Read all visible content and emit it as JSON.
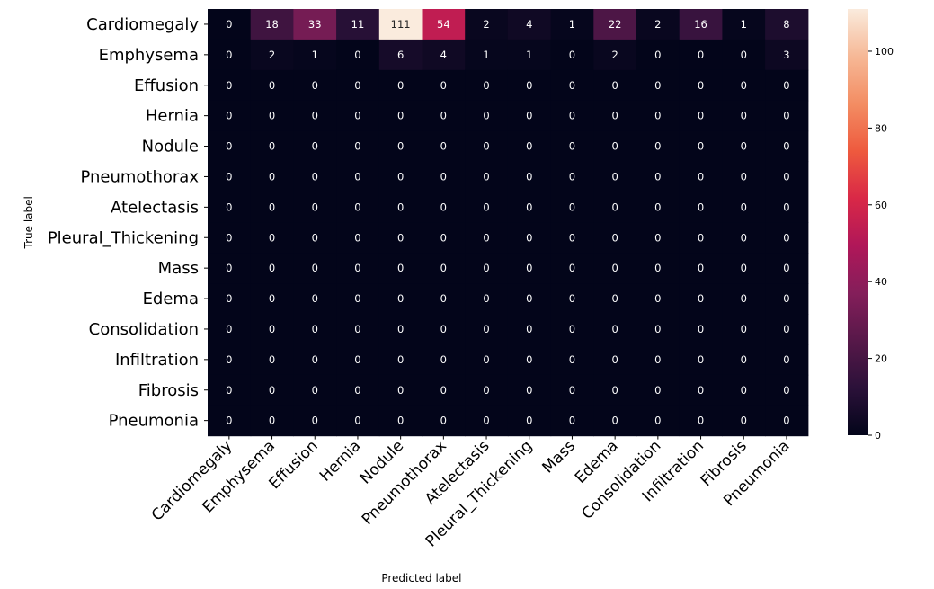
{
  "chart_data": {
    "type": "heatmap",
    "title": "",
    "xlabel": "Predicted label",
    "ylabel": "True label",
    "row_labels": [
      "Cardiomegaly",
      "Emphysema",
      "Effusion",
      "Hernia",
      "Nodule",
      "Pneumothorax",
      "Atelectasis",
      "Pleural_Thickening",
      "Mass",
      "Edema",
      "Consolidation",
      "Infiltration",
      "Fibrosis",
      "Pneumonia"
    ],
    "col_labels": [
      "Cardiomegaly",
      "Emphysema",
      "Effusion",
      "Hernia",
      "Nodule",
      "Pneumothorax",
      "Atelectasis",
      "Pleural_Thickening",
      "Mass",
      "Edema",
      "Consolidation",
      "Infiltration",
      "Fibrosis",
      "Pneumonia"
    ],
    "values": [
      [
        0,
        18,
        33,
        11,
        111,
        54,
        2,
        4,
        1,
        22,
        2,
        16,
        1,
        8
      ],
      [
        0,
        2,
        1,
        0,
        6,
        4,
        1,
        1,
        0,
        2,
        0,
        0,
        0,
        3
      ],
      [
        0,
        0,
        0,
        0,
        0,
        0,
        0,
        0,
        0,
        0,
        0,
        0,
        0,
        0
      ],
      [
        0,
        0,
        0,
        0,
        0,
        0,
        0,
        0,
        0,
        0,
        0,
        0,
        0,
        0
      ],
      [
        0,
        0,
        0,
        0,
        0,
        0,
        0,
        0,
        0,
        0,
        0,
        0,
        0,
        0
      ],
      [
        0,
        0,
        0,
        0,
        0,
        0,
        0,
        0,
        0,
        0,
        0,
        0,
        0,
        0
      ],
      [
        0,
        0,
        0,
        0,
        0,
        0,
        0,
        0,
        0,
        0,
        0,
        0,
        0,
        0
      ],
      [
        0,
        0,
        0,
        0,
        0,
        0,
        0,
        0,
        0,
        0,
        0,
        0,
        0,
        0
      ],
      [
        0,
        0,
        0,
        0,
        0,
        0,
        0,
        0,
        0,
        0,
        0,
        0,
        0,
        0
      ],
      [
        0,
        0,
        0,
        0,
        0,
        0,
        0,
        0,
        0,
        0,
        0,
        0,
        0,
        0
      ],
      [
        0,
        0,
        0,
        0,
        0,
        0,
        0,
        0,
        0,
        0,
        0,
        0,
        0,
        0
      ],
      [
        0,
        0,
        0,
        0,
        0,
        0,
        0,
        0,
        0,
        0,
        0,
        0,
        0,
        0
      ],
      [
        0,
        0,
        0,
        0,
        0,
        0,
        0,
        0,
        0,
        0,
        0,
        0,
        0,
        0
      ],
      [
        0,
        0,
        0,
        0,
        0,
        0,
        0,
        0,
        0,
        0,
        0,
        0,
        0,
        0
      ]
    ],
    "colorbar": {
      "range": [
        0,
        111
      ],
      "ticks": [
        0,
        20,
        40,
        60,
        80,
        100
      ]
    },
    "colormap": "rocket",
    "colormap_stops": [
      "#03051a",
      "#2b1139",
      "#571849",
      "#841e5a",
      "#b01759",
      "#d92847",
      "#ee5a3e",
      "#f38d63",
      "#f6b896",
      "#faebdd"
    ],
    "annotation_color_dark_cell": "#ffffff",
    "annotation_color_light_cell": "#262626"
  }
}
